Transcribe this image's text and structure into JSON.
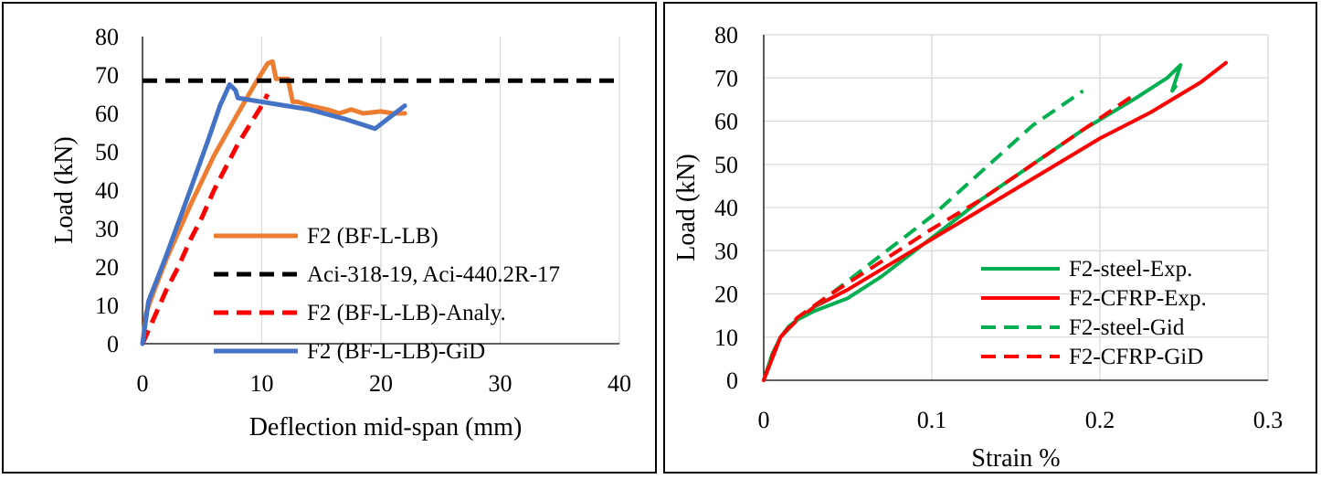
{
  "chart_data": [
    {
      "type": "line",
      "title": "",
      "xlabel": "Deflection mid-span (mm)",
      "ylabel": "Load (kN)",
      "xlim": [
        0,
        40
      ],
      "ylim": [
        0,
        80
      ],
      "x_ticks": [
        "0",
        "10",
        "20",
        "30",
        "40"
      ],
      "y_ticks": [
        "0",
        "10",
        "20",
        "30",
        "40",
        "50",
        "60",
        "70",
        "80"
      ],
      "grid": "vertical",
      "legend_position": "lower-center",
      "series": [
        {
          "name": "F2 (BF-L-LB)",
          "color": "#ED7D31",
          "dash": "solid",
          "x": [
            0,
            0.3,
            1,
            2,
            4,
            6,
            8,
            9.5,
            10.5,
            10.9,
            11.2,
            11.8,
            12.2,
            12.6,
            13,
            14,
            15.5,
            16.5,
            17.5,
            18.5,
            20,
            21,
            22
          ],
          "y": [
            0,
            8,
            14,
            22,
            36,
            49,
            60,
            68,
            73,
            73.5,
            69,
            69,
            69,
            63,
            63,
            62,
            61,
            60,
            61,
            60,
            60.5,
            60,
            60
          ]
        },
        {
          "name": "Aci-318-19, Aci-440.2R-17",
          "color": "#000000",
          "dash": "dashed",
          "x": [
            0,
            40
          ],
          "y": [
            68.5,
            68.5
          ]
        },
        {
          "name": "F2 (BF-L-LB)-Analy.",
          "color": "#FF0000",
          "dash": "dashed",
          "x": [
            0,
            1,
            2,
            3,
            4,
            5,
            6,
            7,
            8,
            9,
            10,
            10.5
          ],
          "y": [
            0,
            7,
            14,
            20,
            27,
            33,
            40,
            46,
            52,
            57,
            62,
            65
          ]
        },
        {
          "name": "F2 (BF-L-LB)-GiD",
          "color": "#4472C4",
          "dash": "solid",
          "x": [
            0,
            0.5,
            2,
            4,
            5.5,
            6.5,
            7.3,
            7.8,
            8,
            12,
            14,
            17,
            19.5,
            22
          ],
          "y": [
            0,
            11,
            23,
            40,
            53,
            62,
            67.5,
            66,
            64,
            62,
            61,
            58.5,
            56,
            62
          ]
        }
      ]
    },
    {
      "type": "line",
      "title": "",
      "xlabel": "Strain %",
      "ylabel": "Load (kN)",
      "xlim": [
        0,
        0.3
      ],
      "ylim": [
        0,
        80
      ],
      "x_ticks": [
        "0",
        "0.1",
        "0.2",
        "0.3"
      ],
      "y_ticks": [
        "0",
        "10",
        "20",
        "30",
        "40",
        "50",
        "60",
        "70",
        "80"
      ],
      "grid": "both",
      "legend_position": "lower-right",
      "series": [
        {
          "name": "F2-steel-Exp.",
          "color": "#00B050",
          "dash": "solid",
          "x": [
            0,
            0.005,
            0.01,
            0.015,
            0.02,
            0.03,
            0.05,
            0.07,
            0.1,
            0.13,
            0.16,
            0.19,
            0.22,
            0.24,
            0.248,
            0.243,
            0.245
          ],
          "y": [
            0,
            6,
            10,
            12.5,
            14,
            16,
            19,
            24,
            33,
            42,
            50,
            58,
            65,
            70,
            73,
            67,
            68
          ]
        },
        {
          "name": "F2-CFRP-Exp.",
          "color": "#FF0000",
          "dash": "solid",
          "x": [
            0,
            0.005,
            0.01,
            0.02,
            0.03,
            0.05,
            0.08,
            0.11,
            0.14,
            0.17,
            0.2,
            0.23,
            0.26,
            0.275
          ],
          "y": [
            0,
            5,
            10,
            14,
            17,
            21,
            28,
            35,
            42,
            49,
            56,
            62,
            69,
            73.5
          ]
        },
        {
          "name": "F2-steel-Gid",
          "color": "#00B050",
          "dash": "dashed",
          "x": [
            0,
            0.005,
            0.01,
            0.02,
            0.04,
            0.06,
            0.08,
            0.1,
            0.12,
            0.14,
            0.16,
            0.19
          ],
          "y": [
            0,
            6,
            10,
            14,
            20,
            26,
            32,
            38,
            45,
            52,
            59,
            67
          ]
        },
        {
          "name": "F2-CFRP-GiD",
          "color": "#FF0000",
          "dash": "dashed",
          "x": [
            0,
            0.005,
            0.01,
            0.02,
            0.04,
            0.06,
            0.08,
            0.1,
            0.13,
            0.16,
            0.19,
            0.22
          ],
          "y": [
            0,
            5.5,
            10,
            14.5,
            20,
            25,
            30,
            35,
            42,
            50,
            58,
            66
          ]
        }
      ]
    }
  ]
}
